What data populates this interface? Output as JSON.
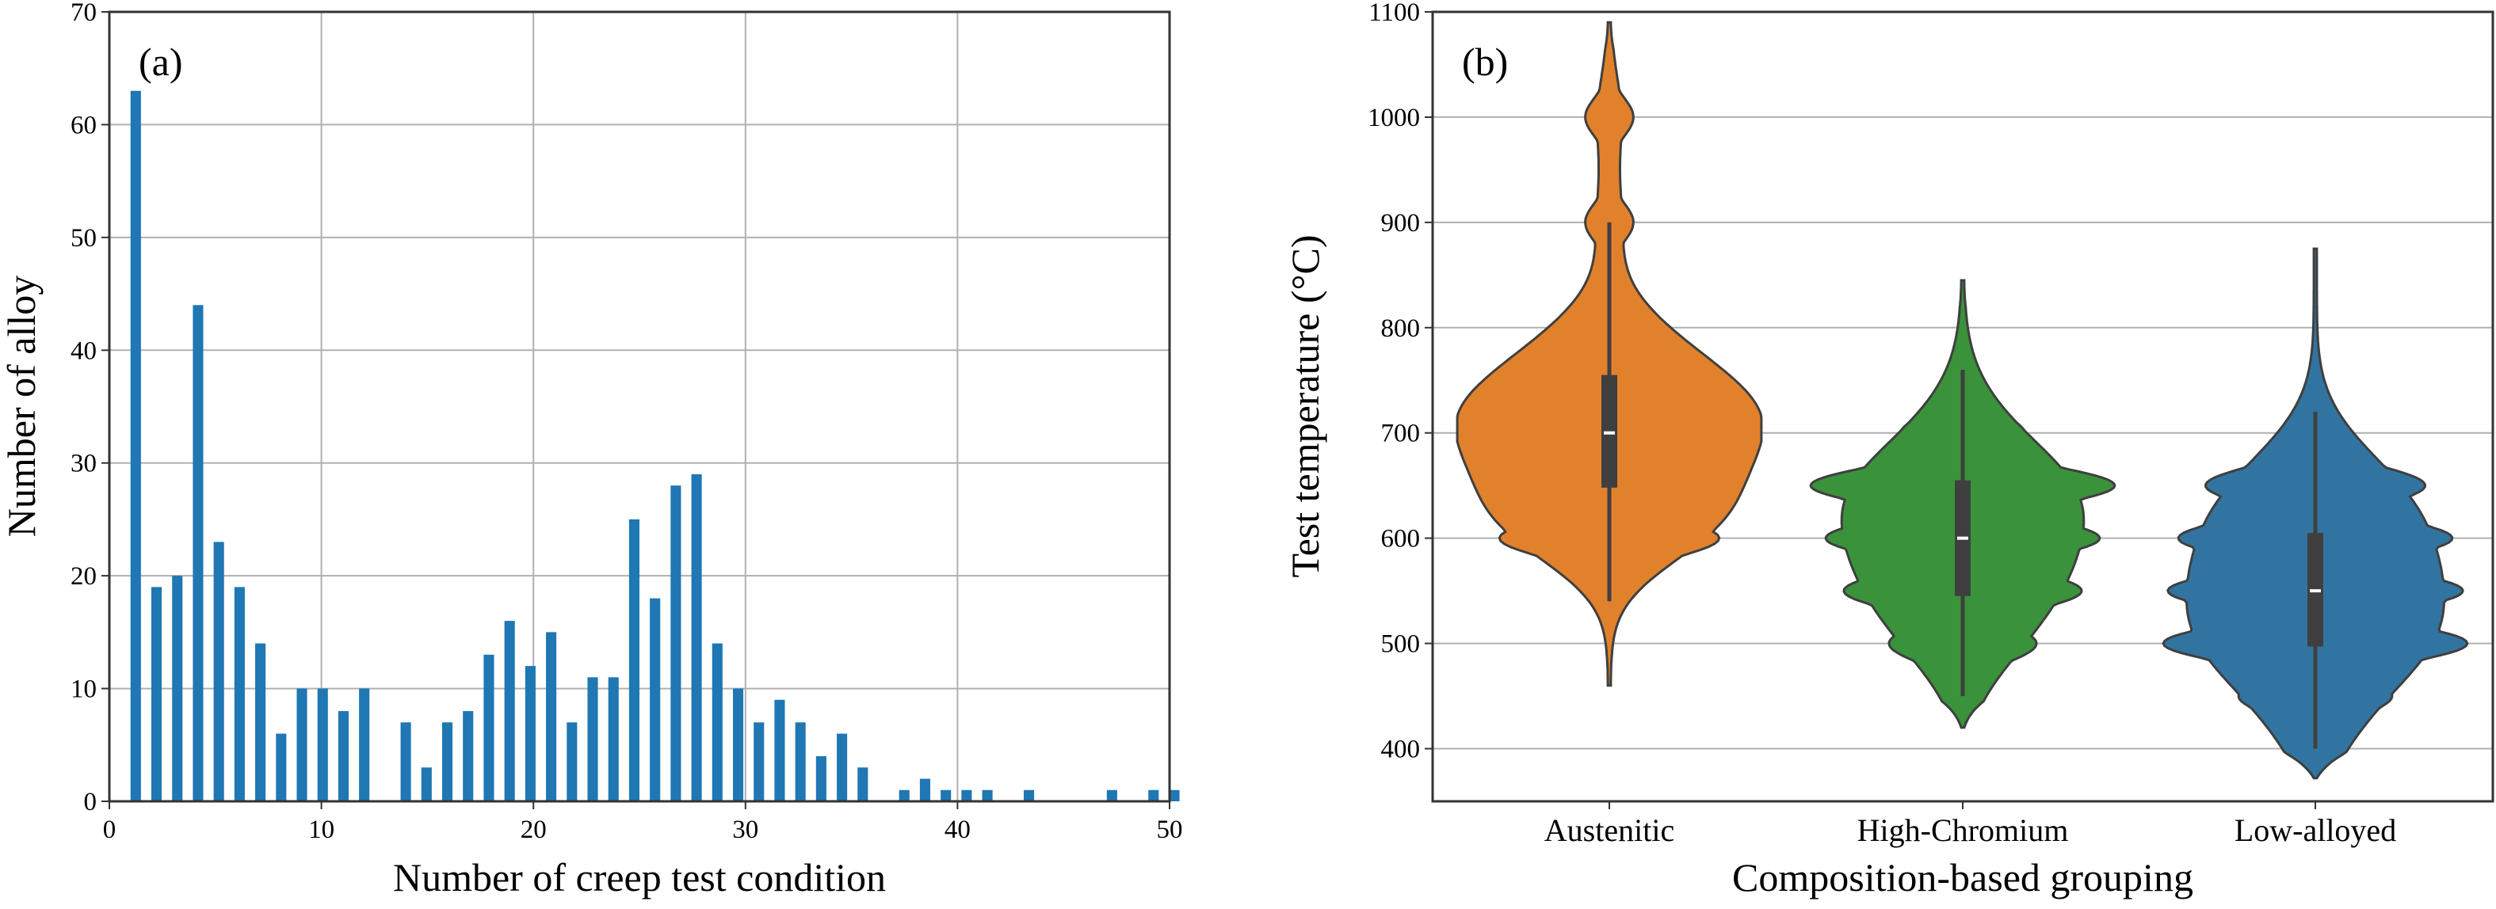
{
  "chart_data": [
    {
      "type": "bar",
      "panel_tag": "(a)",
      "title": "",
      "xlabel": "Number of creep test condition",
      "ylabel": "Number of alloy",
      "xlim": [
        0,
        50
      ],
      "ylim": [
        0,
        70
      ],
      "xticks": [
        0,
        10,
        20,
        30,
        40,
        50
      ],
      "yticks": [
        0,
        10,
        20,
        30,
        40,
        50,
        60,
        70
      ],
      "grid": true,
      "bar_color": "#1f77b4",
      "x": [
        1,
        2,
        3,
        4,
        5,
        6,
        7,
        8,
        9,
        10,
        11,
        12,
        14,
        15,
        16,
        17,
        18,
        19,
        20,
        21,
        22,
        23,
        24,
        25,
        26,
        27,
        28,
        29,
        30,
        31,
        32,
        33,
        34,
        35,
        36,
        38,
        39,
        40,
        41,
        42,
        44,
        48,
        50,
        51
      ],
      "values": [
        63,
        19,
        20,
        44,
        23,
        19,
        14,
        6,
        10,
        10,
        8,
        10,
        7,
        3,
        7,
        8,
        13,
        16,
        12,
        15,
        7,
        11,
        11,
        25,
        18,
        28,
        29,
        14,
        10,
        7,
        9,
        7,
        4,
        6,
        3,
        1,
        2,
        1,
        1,
        1,
        1,
        1,
        1,
        1
      ]
    },
    {
      "type": "violin",
      "panel_tag": "(b)",
      "title": "",
      "xlabel": "Composition-based grouping",
      "ylabel": "Test temperature (°C)",
      "ylim": [
        350,
        1100
      ],
      "yticks": [
        400,
        500,
        600,
        700,
        800,
        900,
        1000,
        1100
      ],
      "grid": true,
      "categories": [
        "Austenitic",
        "High-Chromium",
        "Low-alloyed"
      ],
      "series": [
        {
          "name": "Austenitic",
          "color": "#e1812c",
          "median": 700,
          "q1": 648,
          "q3": 755,
          "whisker_low": 540,
          "whisker_high": 900,
          "min": 460,
          "max": 1090,
          "density_peaks": [
            [
              600,
              0.72
            ],
            [
              630,
              0.58
            ],
            [
              660,
              0.6
            ],
            [
              700,
              1.0
            ],
            [
              730,
              0.72
            ],
            [
              760,
              0.56
            ],
            [
              800,
              0.35
            ],
            [
              900,
              0.15
            ],
            [
              1000,
              0.15
            ]
          ]
        },
        {
          "name": "High-Chromium",
          "color": "#3a923a",
          "median": 600,
          "q1": 545,
          "q3": 655,
          "whisker_low": 450,
          "whisker_high": 760,
          "min": 420,
          "max": 845,
          "density_peaks": [
            [
              450,
              0.08
            ],
            [
              500,
              0.48
            ],
            [
              550,
              0.78
            ],
            [
              600,
              0.9
            ],
            [
              650,
              1.0
            ],
            [
              700,
              0.4
            ],
            [
              750,
              0.08
            ]
          ]
        },
        {
          "name": "Low-alloyed",
          "color": "#3274a1",
          "median": 550,
          "q1": 497,
          "q3": 605,
          "whisker_low": 400,
          "whisker_high": 720,
          "min": 372,
          "max": 875,
          "density_peaks": [
            [
              400,
              0.2
            ],
            [
              450,
              0.5
            ],
            [
              500,
              1.0
            ],
            [
              550,
              0.97
            ],
            [
              600,
              0.9
            ],
            [
              650,
              0.72
            ],
            [
              700,
              0.18
            ]
          ]
        }
      ]
    }
  ]
}
